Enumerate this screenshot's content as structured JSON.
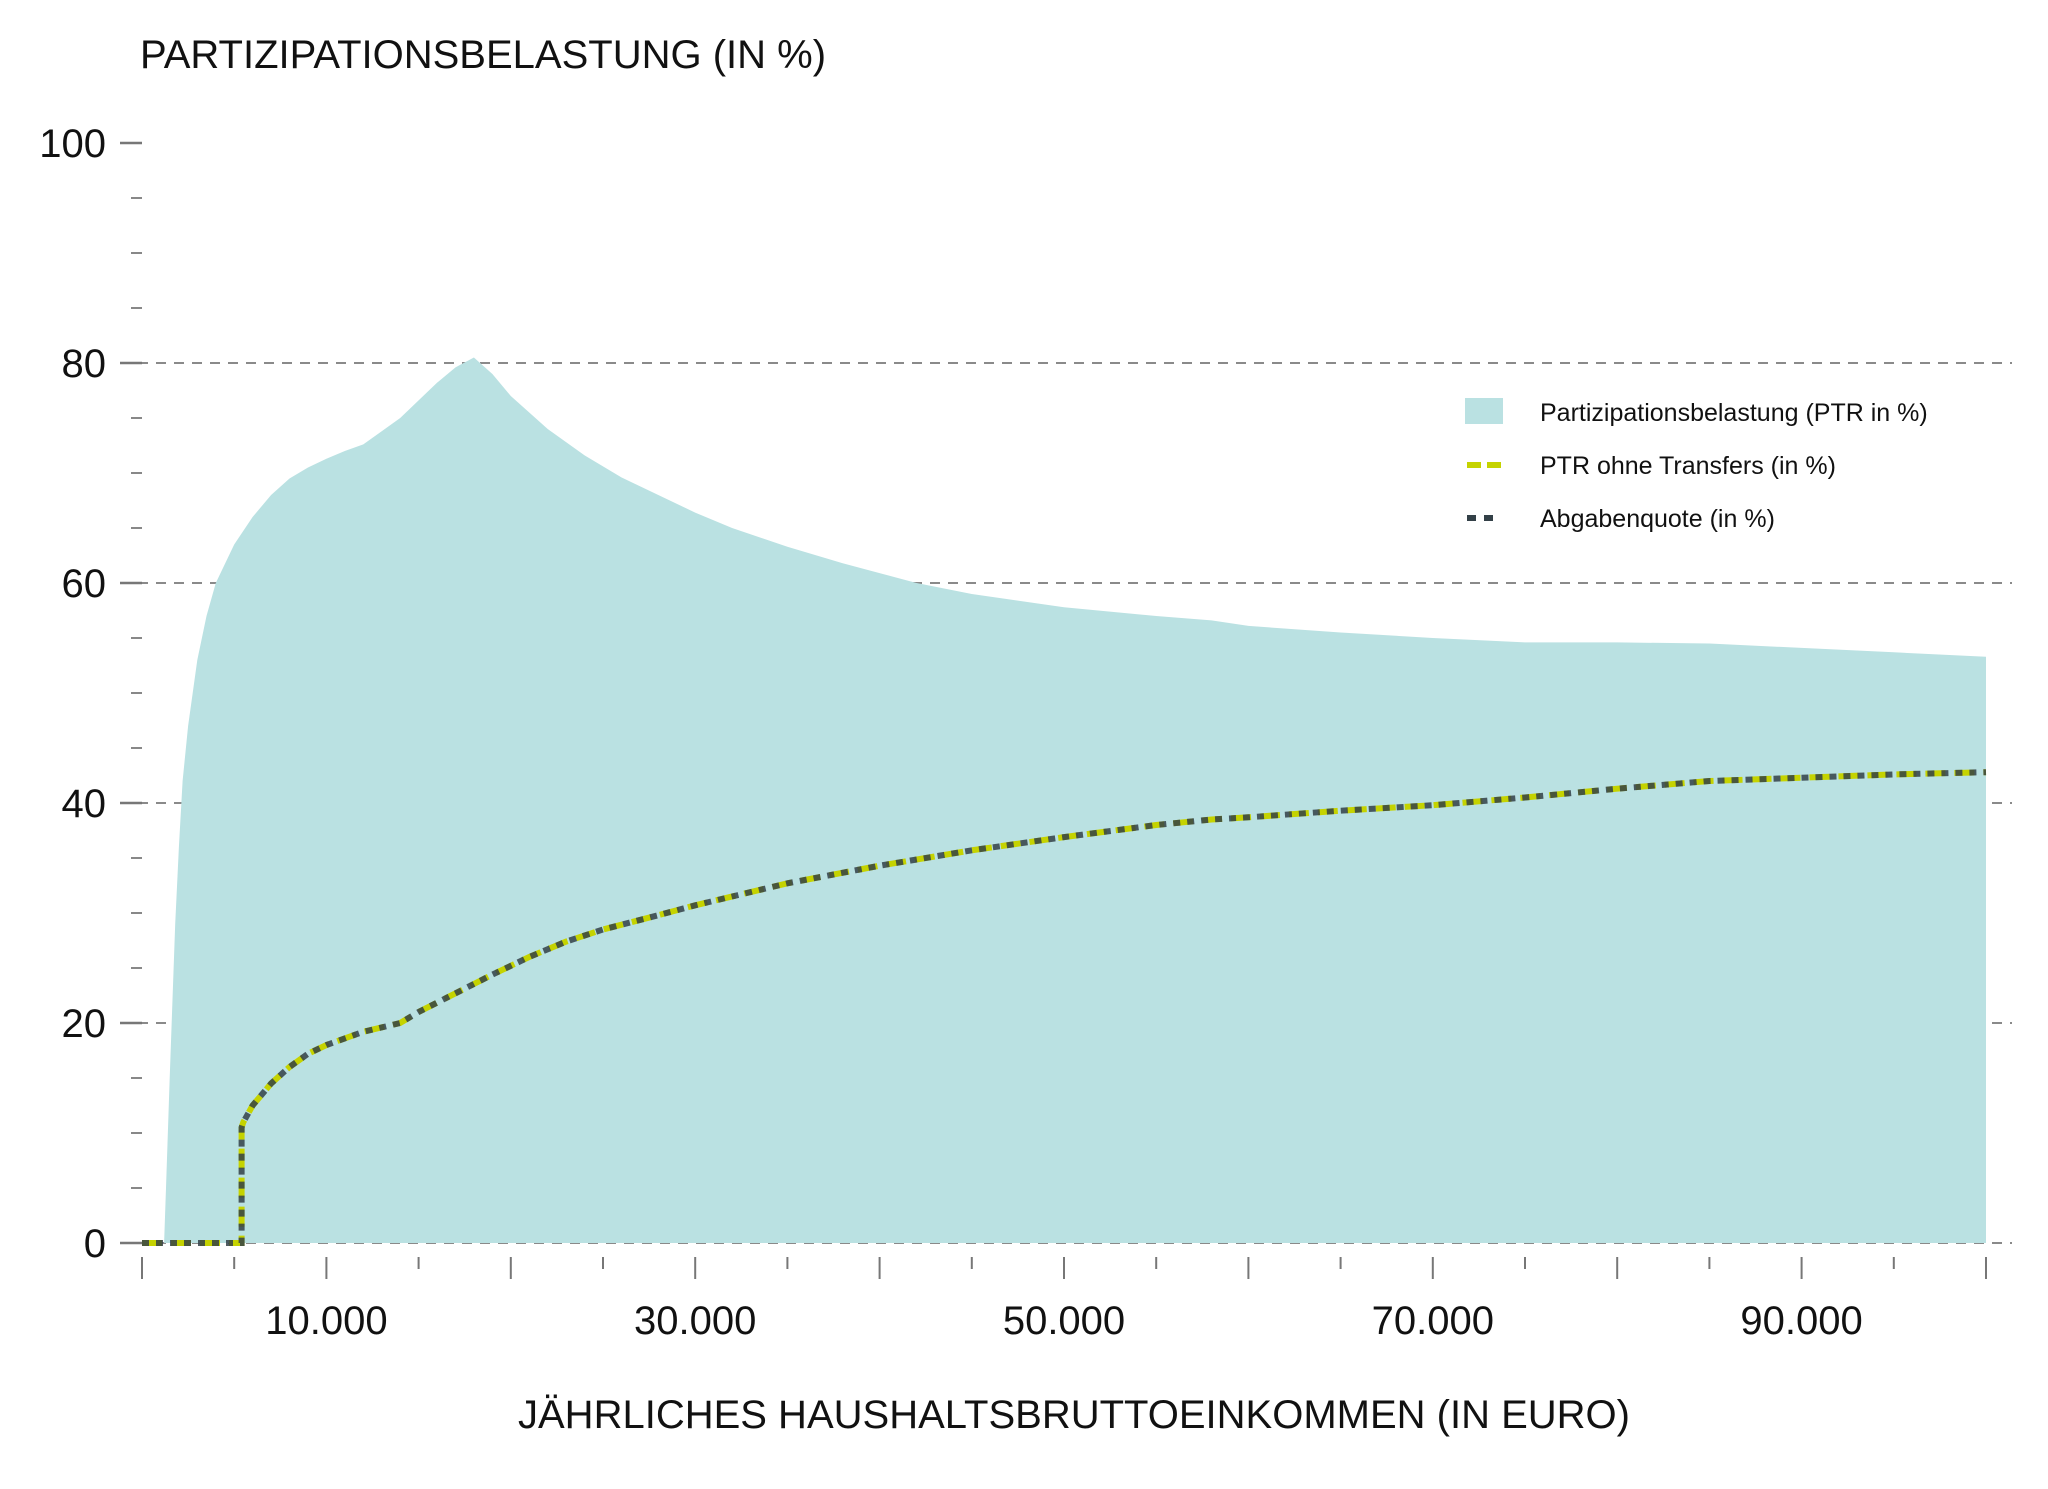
{
  "chart_data": {
    "type": "area",
    "title": "",
    "ylabel": "PARTIZIPATIONSBELASTUNG (IN %)",
    "xlabel": "JÄHRLICHES HAUSHALTSBRUTTOEINKOMMEN (IN EURO)",
    "xlim": [
      0,
      100000
    ],
    "ylim": [
      0,
      100
    ],
    "y_ticks": [
      0,
      20,
      40,
      60,
      80,
      100
    ],
    "y_tick_labels": [
      "0",
      "20",
      "40",
      "60",
      "80",
      "100"
    ],
    "x_ticks": [
      10000,
      30000,
      50000,
      70000,
      90000
    ],
    "x_tick_labels": [
      "10.000",
      "30.000",
      "50.000",
      "70.000",
      "90.000"
    ],
    "grid": "horizontal dashed at 0, 20, 40, 60, 80",
    "legend_position": "top-right",
    "series": [
      {
        "name": "Partizipationsbelastung (PTR in %)",
        "style": "filled area",
        "color": "#bae1e2",
        "x": [
          0,
          1200,
          1300,
          1500,
          1800,
          2000,
          2200,
          2500,
          3000,
          3500,
          4000,
          5000,
          6000,
          7000,
          8000,
          9000,
          10000,
          11000,
          12000,
          13000,
          14000,
          15000,
          16000,
          17000,
          18000,
          19000,
          20000,
          22000,
          24000,
          26000,
          28000,
          30000,
          32000,
          35000,
          38000,
          40000,
          42000,
          45000,
          50000,
          55000,
          58000,
          60000,
          65000,
          70000,
          75000,
          80000,
          85000,
          90000,
          95000,
          100000
        ],
        "y": [
          0,
          0,
          5,
          15,
          29,
          36,
          42,
          47,
          53,
          57,
          60,
          63.5,
          66,
          68,
          69.5,
          70.5,
          71.3,
          72,
          72.6,
          73.8,
          75,
          76.6,
          78.2,
          79.6,
          80.5,
          79,
          77,
          74,
          71.6,
          69.6,
          68,
          66.4,
          65,
          63.3,
          61.8,
          60.9,
          60,
          59,
          57.8,
          57,
          56.6,
          56.1,
          55.5,
          55,
          54.6,
          54.6,
          54.5,
          54.1,
          53.7,
          53.3
        ]
      },
      {
        "name": "PTR ohne Transfers (in %)",
        "style": "dashed line",
        "color": "#c5d300",
        "x": [
          0,
          5400,
          5400,
          5500,
          6000,
          7000,
          8000,
          9000,
          10000,
          12000,
          14000,
          15000,
          17000,
          19000,
          21000,
          23000,
          25000,
          28000,
          30000,
          35000,
          40000,
          45000,
          50000,
          55000,
          58000,
          60000,
          65000,
          70000,
          75000,
          80000,
          85000,
          90000,
          95000,
          100000
        ],
        "y": [
          0,
          0,
          10.5,
          11,
          12.5,
          14.5,
          16,
          17.2,
          18,
          19.2,
          20,
          21,
          22.7,
          24.4,
          26,
          27.4,
          28.5,
          29.8,
          30.7,
          32.7,
          34.3,
          35.7,
          36.9,
          38,
          38.5,
          38.7,
          39.3,
          39.8,
          40.5,
          41.3,
          42,
          42.3,
          42.6,
          42.8
        ]
      },
      {
        "name": "Abgabenquote (in %)",
        "style": "dotted line",
        "color": "#334047",
        "x": [
          0,
          5400,
          5400,
          5500,
          6000,
          7000,
          8000,
          9000,
          10000,
          12000,
          14000,
          15000,
          17000,
          19000,
          21000,
          23000,
          25000,
          28000,
          30000,
          35000,
          40000,
          45000,
          50000,
          55000,
          58000,
          60000,
          65000,
          70000,
          75000,
          80000,
          85000,
          90000,
          95000,
          100000
        ],
        "y": [
          0,
          0,
          10.5,
          11,
          12.5,
          14.5,
          16,
          17.2,
          18,
          19.2,
          20,
          21,
          22.7,
          24.4,
          26,
          27.4,
          28.5,
          29.8,
          30.7,
          32.7,
          34.3,
          35.7,
          36.9,
          38,
          38.5,
          38.7,
          39.3,
          39.8,
          40.5,
          41.3,
          42,
          42.3,
          42.6,
          42.8
        ]
      }
    ]
  }
}
